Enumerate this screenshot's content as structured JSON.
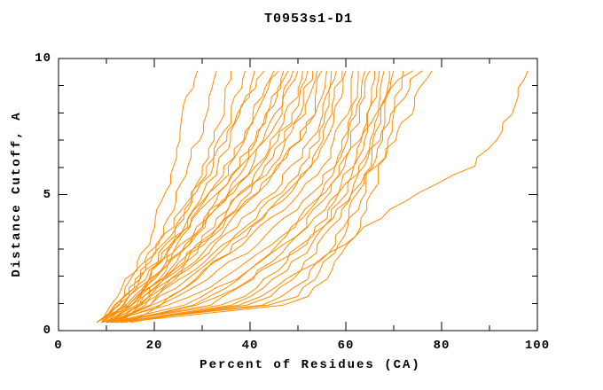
{
  "chart_data": {
    "type": "line",
    "title": "T0953s1-D1",
    "xlabel": "Percent of Residues (CA)",
    "ylabel": "Distance Cutoff, A",
    "xlim": [
      0,
      100
    ],
    "ylim": [
      0,
      10
    ],
    "xticks": [
      0,
      20,
      40,
      60,
      80,
      100
    ],
    "x_minor_step": 10,
    "yticks": [
      0,
      5,
      10
    ],
    "y_minor_step": 1,
    "grid": "off",
    "legend": "none",
    "line_color": "#ff8c00",
    "frame_color": "#000000",
    "background": "#ffffff",
    "cutoffs_y": [
      0.3,
      1,
      2,
      3,
      4,
      5,
      6,
      7,
      8,
      9,
      9.55
    ],
    "series": [
      [
        9,
        12,
        15,
        18,
        20,
        22,
        23.5,
        25,
        26,
        27.5,
        29
      ],
      [
        8,
        13,
        17,
        20,
        23,
        25,
        27,
        29,
        31,
        32,
        33
      ],
      [
        10,
        14,
        18,
        22,
        25,
        28,
        30,
        32,
        34,
        35,
        36
      ],
      [
        9,
        13,
        17,
        21,
        25,
        28,
        31,
        34,
        36,
        38,
        39
      ],
      [
        11,
        16,
        20,
        24,
        27,
        30,
        33,
        36,
        38,
        40,
        41
      ],
      [
        8,
        12,
        16,
        20,
        24,
        28,
        32,
        35,
        38,
        41,
        43
      ],
      [
        10,
        15,
        19,
        23,
        27,
        31,
        35,
        38,
        41,
        43,
        45
      ],
      [
        9,
        14,
        19,
        24,
        28,
        32,
        36,
        39,
        42,
        44,
        46
      ],
      [
        12,
        17,
        22,
        26,
        30,
        34,
        38,
        41,
        44,
        46,
        47
      ],
      [
        8,
        13,
        18,
        23,
        28,
        33,
        37,
        41,
        44,
        46,
        48
      ],
      [
        10,
        16,
        21,
        26,
        31,
        36,
        40,
        43,
        46,
        48,
        49
      ],
      [
        11,
        15,
        20,
        25,
        30,
        35,
        39,
        43,
        46,
        49,
        50
      ],
      [
        9,
        14,
        20,
        26,
        31,
        36,
        41,
        45,
        48,
        50,
        51
      ],
      [
        13,
        18,
        24,
        29,
        34,
        38,
        42,
        46,
        49,
        51,
        52
      ],
      [
        10,
        17,
        23,
        28,
        33,
        38,
        43,
        47,
        50,
        52,
        53
      ],
      [
        8,
        15,
        22,
        28,
        34,
        39,
        44,
        48,
        51,
        53,
        54
      ],
      [
        12,
        19,
        25,
        31,
        36,
        41,
        46,
        50,
        53,
        54,
        55
      ],
      [
        9,
        16,
        23,
        29,
        35,
        41,
        46,
        50,
        53,
        55,
        56
      ],
      [
        11,
        18,
        25,
        32,
        38,
        44,
        49,
        53,
        55,
        56,
        57
      ],
      [
        10,
        20,
        27,
        34,
        40,
        46,
        51,
        54,
        56,
        57,
        58
      ],
      [
        14,
        22,
        29,
        36,
        42,
        48,
        52,
        55,
        57,
        58,
        59
      ],
      [
        9,
        18,
        26,
        34,
        41,
        47,
        52,
        56,
        58,
        59,
        60
      ],
      [
        12,
        21,
        29,
        37,
        44,
        50,
        55,
        58,
        60,
        61,
        61.5
      ],
      [
        10,
        23,
        32,
        40,
        47,
        53,
        57,
        59,
        61,
        62,
        62.5
      ],
      [
        11,
        30,
        38,
        45,
        50,
        55,
        58,
        60,
        62,
        63,
        64
      ],
      [
        12,
        33,
        41,
        47,
        52,
        56,
        59,
        61,
        63,
        64,
        65
      ],
      [
        10,
        36,
        44,
        50,
        55,
        58.5,
        61,
        63,
        64.5,
        65.5,
        66
      ],
      [
        13,
        39,
        46,
        52,
        56,
        59.5,
        62,
        63.5,
        65,
        66.5,
        67
      ],
      [
        11,
        42,
        49,
        54,
        58,
        61,
        63,
        65,
        66.5,
        67.5,
        68
      ],
      [
        12,
        45,
        52,
        56.5,
        60,
        62.5,
        64.5,
        66,
        67,
        68,
        69
      ],
      [
        10,
        48,
        54,
        58,
        61,
        63.5,
        65.5,
        67,
        68,
        69,
        70
      ],
      [
        13,
        50,
        56,
        60,
        63,
        65.5,
        67,
        68.5,
        70,
        71,
        72
      ],
      [
        9,
        25,
        35,
        43,
        50,
        55,
        59,
        63,
        66.5,
        70,
        74
      ],
      [
        11,
        28,
        38,
        46,
        53,
        58,
        63,
        67,
        70,
        73,
        76
      ],
      [
        12,
        31,
        41,
        50,
        56,
        61,
        66,
        70,
        73.5,
        76,
        78
      ],
      [
        15,
        39.5,
        49,
        58.5,
        65.5,
        74.5,
        86.5,
        91,
        94,
        96.5,
        98
      ]
    ]
  }
}
